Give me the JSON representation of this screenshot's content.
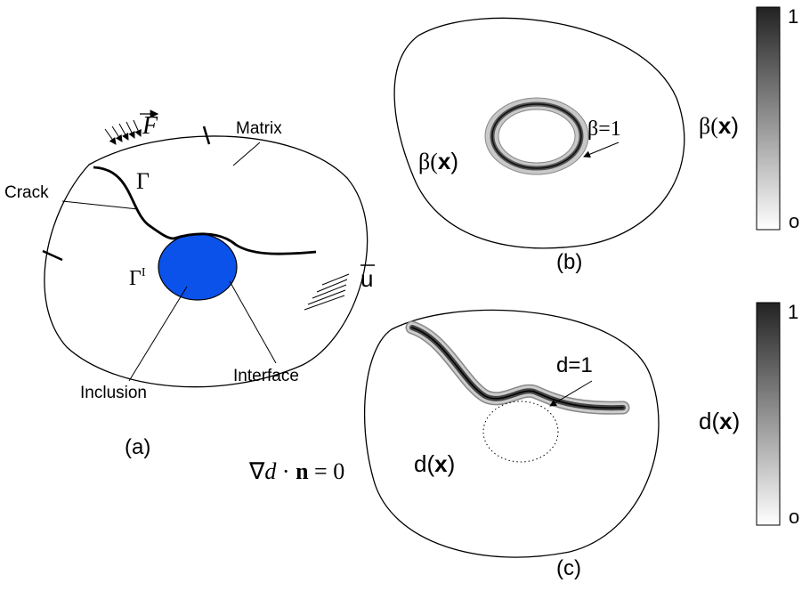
{
  "panel_a": {
    "caption": "(a)",
    "force": "F",
    "matrix": "Matrix",
    "crack": "Crack",
    "gamma": "Γ",
    "gamma_i": {
      "base": "Γ",
      "sup": "I"
    },
    "displacement": "u",
    "inclusion": "Inclusion",
    "interface": "Interface"
  },
  "panel_b": {
    "caption": "(b)",
    "field": {
      "name": "β(",
      "var": "x",
      "close": ")"
    },
    "band_label": "β=1",
    "colorbar": {
      "max": "1",
      "min": "o",
      "label": {
        "name": "β(",
        "var": "x",
        "close": ")"
      }
    }
  },
  "panel_c": {
    "caption": "(c)",
    "field": {
      "name": "d(",
      "var": "x",
      "close": ")"
    },
    "band_label": "d=1",
    "condition": {
      "nabla": "∇",
      "d": "d",
      "dot": " · ",
      "n": "n",
      "rest": " = 0"
    },
    "colorbar": {
      "max": "1",
      "min": "o",
      "label": {
        "name": "d(",
        "var": "x",
        "close": ")"
      }
    }
  }
}
